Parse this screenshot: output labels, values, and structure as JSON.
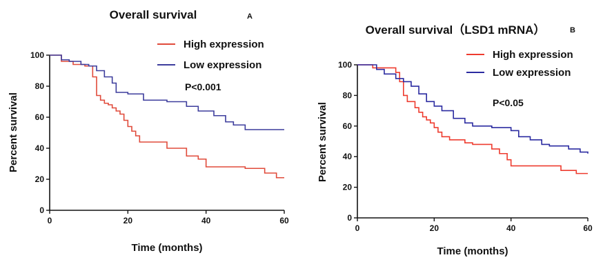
{
  "chart_data": [
    {
      "type": "line",
      "subtype": "kaplan-meier-step",
      "panel_label": "A",
      "title": "Overall survival",
      "xlabel": "Time (months)",
      "ylabel": "Percent survival",
      "xlim": [
        0,
        60
      ],
      "ylim": [
        0,
        100
      ],
      "xticks": [
        0,
        20,
        40,
        60
      ],
      "yticks": [
        0,
        20,
        40,
        60,
        80,
        100
      ],
      "grid": false,
      "legend_position": "top-right",
      "annotation": "P<0.001",
      "series": [
        {
          "name": "High expression",
          "color": "#e04a3a",
          "x": [
            0,
            3,
            6,
            9,
            11,
            12,
            13,
            14,
            15,
            16,
            17,
            18,
            19,
            20,
            21,
            22,
            23,
            25,
            30,
            35,
            38,
            40,
            50,
            55,
            58,
            60
          ],
          "y": [
            100,
            96,
            94,
            93,
            86,
            74,
            71,
            69,
            68,
            66,
            64,
            62,
            58,
            54,
            51,
            48,
            44,
            44,
            40,
            35,
            33,
            28,
            27,
            24,
            21,
            21
          ]
        },
        {
          "name": "Low expression",
          "color": "#3c3c9c",
          "x": [
            0,
            3,
            5,
            8,
            10,
            12,
            14,
            16,
            17,
            20,
            24,
            30,
            35,
            38,
            42,
            45,
            47,
            50,
            60
          ],
          "y": [
            100,
            97,
            96,
            94,
            93,
            90,
            86,
            82,
            76,
            75,
            71,
            70,
            67,
            64,
            61,
            57,
            55,
            52,
            52
          ]
        }
      ]
    },
    {
      "type": "line",
      "subtype": "kaplan-meier-step",
      "panel_label": "B",
      "title": "Overall survival（LSD1 mRNA）",
      "xlabel": "Time (months)",
      "ylabel": "Percent survival",
      "xlim": [
        0,
        60
      ],
      "ylim": [
        0,
        100
      ],
      "xticks": [
        0,
        20,
        40,
        60
      ],
      "yticks": [
        0,
        20,
        40,
        60,
        80,
        100
      ],
      "grid": false,
      "legend_position": "top-right",
      "annotation": "P<0.05",
      "series": [
        {
          "name": "High expression",
          "color": "#ee3b2e",
          "x": [
            0,
            4,
            8,
            10,
            11,
            12,
            13,
            15,
            16,
            17,
            18,
            19,
            20,
            21,
            22,
            24,
            28,
            30,
            35,
            37,
            39,
            40,
            50,
            53,
            57,
            60
          ],
          "y": [
            100,
            98,
            98,
            95,
            89,
            80,
            76,
            72,
            69,
            66,
            64,
            62,
            59,
            56,
            53,
            51,
            49,
            48,
            45,
            42,
            38,
            34,
            34,
            31,
            29,
            29
          ]
        },
        {
          "name": "Low expression",
          "color": "#2a2aa0",
          "x": [
            0,
            5,
            7,
            10,
            12,
            14,
            16,
            18,
            20,
            22,
            25,
            28,
            30,
            35,
            40,
            42,
            45,
            48,
            50,
            55,
            58,
            60
          ],
          "y": [
            100,
            97,
            94,
            91,
            89,
            86,
            81,
            76,
            73,
            70,
            65,
            62,
            60,
            59,
            57,
            53,
            51,
            48,
            47,
            45,
            43,
            42
          ]
        }
      ]
    }
  ]
}
